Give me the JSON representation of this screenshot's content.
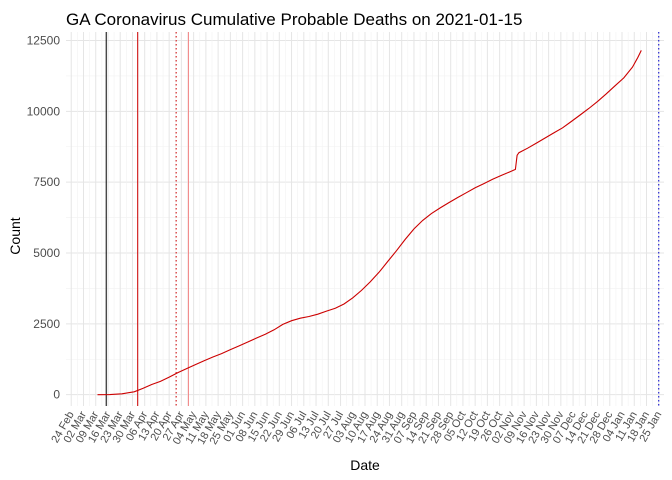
{
  "chart_data": {
    "type": "line",
    "title": "GA Coronavirus Cumulative Probable Deaths on 2021-01-15",
    "xlabel": "Date",
    "ylabel": "Count",
    "grid": true,
    "legend": "none",
    "xlim": [
      "2020-02-21",
      "2021-01-28"
    ],
    "ylim": [
      -400,
      12800
    ],
    "y_ticks": [
      0,
      2500,
      5000,
      7500,
      10000,
      12500
    ],
    "x_tick_labels": [
      "24 Feb",
      "02 Mar",
      "09 Mar",
      "16 Mar",
      "23 Mar",
      "30 Mar",
      "06 Apr",
      "13 Apr",
      "20 Apr",
      "27 Apr",
      "04 May",
      "11 May",
      "18 May",
      "25 May",
      "01 Jun",
      "08 Jun",
      "15 Jun",
      "22 Jun",
      "29 Jun",
      "06 Jul",
      "13 Jul",
      "20 Jul",
      "27 Jul",
      "03 Aug",
      "10 Aug",
      "17 Aug",
      "24 Aug",
      "31 Aug",
      "07 Sep",
      "14 Sep",
      "21 Sep",
      "28 Sep",
      "05 Oct",
      "12 Oct",
      "19 Oct",
      "26 Oct",
      "02 Nov",
      "09 Nov",
      "16 Nov",
      "23 Nov",
      "30 Nov",
      "07 Dec",
      "14 Dec",
      "21 Dec",
      "28 Dec",
      "04 Jan",
      "11 Jan",
      "18 Jan",
      "25 Jan"
    ],
    "x_tick_start": "2020-02-24",
    "x_tick_step_days": 7,
    "series": [
      {
        "color": "#cc0000",
        "points": [
          [
            "2020-03-10",
            0
          ],
          [
            "2020-03-17",
            2
          ],
          [
            "2020-03-24",
            30
          ],
          [
            "2020-03-31",
            100
          ],
          [
            "2020-04-05",
            220
          ],
          [
            "2020-04-10",
            360
          ],
          [
            "2020-04-15",
            470
          ],
          [
            "2020-04-20",
            620
          ],
          [
            "2020-04-25",
            780
          ],
          [
            "2020-04-30",
            920
          ],
          [
            "2020-05-05",
            1060
          ],
          [
            "2020-05-10",
            1200
          ],
          [
            "2020-05-15",
            1330
          ],
          [
            "2020-05-20",
            1450
          ],
          [
            "2020-05-25",
            1590
          ],
          [
            "2020-05-30",
            1720
          ],
          [
            "2020-06-04",
            1860
          ],
          [
            "2020-06-09",
            2000
          ],
          [
            "2020-06-14",
            2130
          ],
          [
            "2020-06-19",
            2290
          ],
          [
            "2020-06-24",
            2480
          ],
          [
            "2020-06-29",
            2610
          ],
          [
            "2020-07-04",
            2700
          ],
          [
            "2020-07-09",
            2760
          ],
          [
            "2020-07-14",
            2840
          ],
          [
            "2020-07-19",
            2950
          ],
          [
            "2020-07-24",
            3050
          ],
          [
            "2020-07-29",
            3200
          ],
          [
            "2020-08-03",
            3420
          ],
          [
            "2020-08-08",
            3680
          ],
          [
            "2020-08-13",
            3980
          ],
          [
            "2020-08-18",
            4320
          ],
          [
            "2020-08-23",
            4700
          ],
          [
            "2020-08-28",
            5080
          ],
          [
            "2020-09-02",
            5480
          ],
          [
            "2020-09-07",
            5850
          ],
          [
            "2020-09-12",
            6150
          ],
          [
            "2020-09-17",
            6390
          ],
          [
            "2020-09-22",
            6590
          ],
          [
            "2020-09-27",
            6780
          ],
          [
            "2020-10-02",
            6960
          ],
          [
            "2020-10-07",
            7130
          ],
          [
            "2020-10-12",
            7300
          ],
          [
            "2020-10-17",
            7450
          ],
          [
            "2020-10-22",
            7600
          ],
          [
            "2020-10-27",
            7740
          ],
          [
            "2020-11-01",
            7870
          ],
          [
            "2020-11-04",
            7950
          ],
          [
            "2020-11-05",
            8450
          ],
          [
            "2020-11-06",
            8540
          ],
          [
            "2020-11-11",
            8700
          ],
          [
            "2020-11-16",
            8880
          ],
          [
            "2020-11-21",
            9060
          ],
          [
            "2020-11-26",
            9240
          ],
          [
            "2020-12-01",
            9420
          ],
          [
            "2020-12-06",
            9640
          ],
          [
            "2020-12-11",
            9870
          ],
          [
            "2020-12-16",
            10100
          ],
          [
            "2020-12-21",
            10350
          ],
          [
            "2020-12-26",
            10620
          ],
          [
            "2020-12-31",
            10900
          ],
          [
            "2021-01-05",
            11180
          ],
          [
            "2021-01-10",
            11560
          ],
          [
            "2021-01-13",
            11900
          ],
          [
            "2021-01-15",
            12150
          ]
        ]
      }
    ],
    "vlines": [
      {
        "date": "2020-03-15",
        "color": "#000000",
        "style": "solid"
      },
      {
        "date": "2020-04-02",
        "color": "#cc0000",
        "style": "solid"
      },
      {
        "date": "2020-04-24",
        "color": "#cc0000",
        "style": "dotted"
      },
      {
        "date": "2020-05-01",
        "color": "#f08080",
        "style": "solid"
      },
      {
        "date": "2021-01-25",
        "color": "#0000cc",
        "style": "dotted"
      }
    ]
  }
}
